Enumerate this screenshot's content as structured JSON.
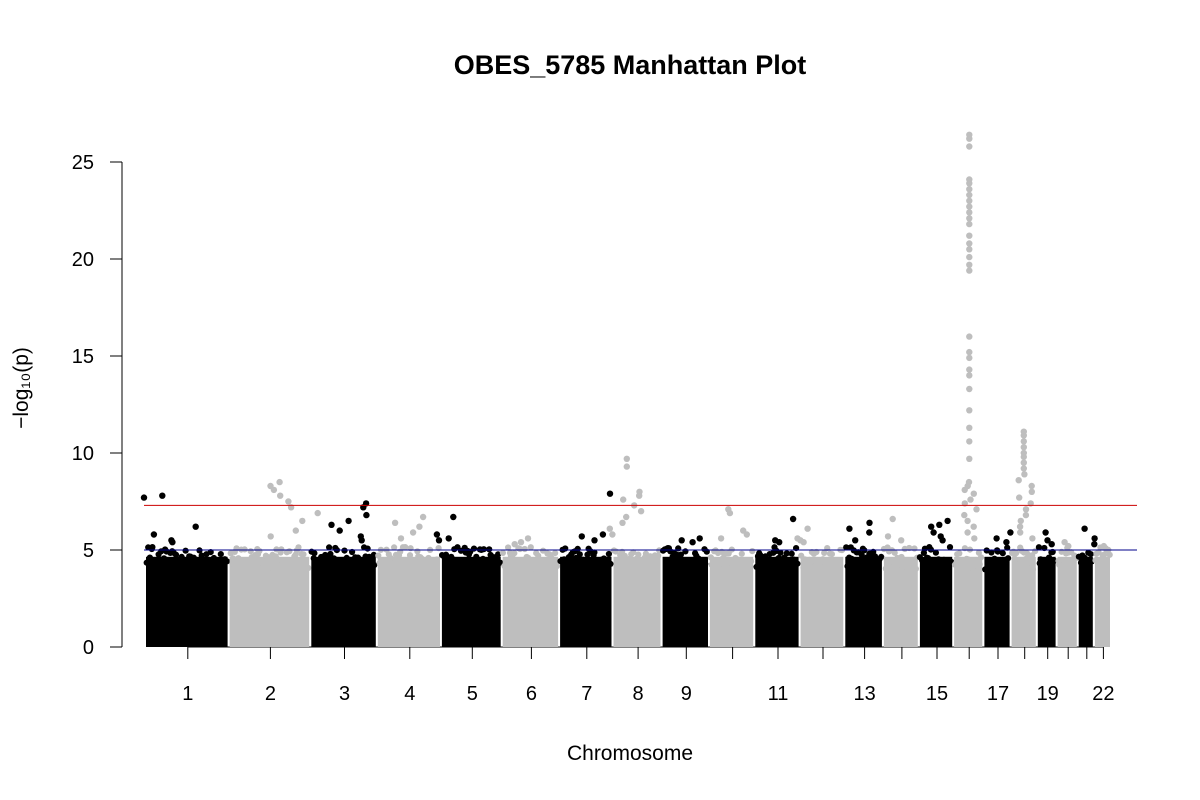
{
  "chart_data": {
    "type": "scatter",
    "title": "OBES_5785 Manhattan Plot",
    "xlabel": "Chromosome",
    "ylabel": "−log₁₀(p)",
    "ylim": [
      0,
      27
    ],
    "yticks": [
      0,
      5,
      10,
      15,
      20,
      25
    ],
    "chromosomes": [
      {
        "chr": "1",
        "peak": 7.8,
        "spikes": [
          7.8,
          7.7,
          6.2,
          5.8,
          5.5,
          5.4
        ]
      },
      {
        "chr": "2",
        "peak": 8.5,
        "spikes": [
          8.5,
          8.3,
          8.1,
          7.8,
          7.5,
          7.2,
          6.9,
          6.5,
          6.0,
          5.7
        ]
      },
      {
        "chr": "3",
        "peak": 7.4,
        "spikes": [
          7.4,
          7.2,
          6.8,
          6.5,
          6.3,
          6.0,
          5.7,
          5.5
        ]
      },
      {
        "chr": "4",
        "peak": 6.7,
        "spikes": [
          6.7,
          6.4,
          6.2,
          5.9,
          5.6
        ]
      },
      {
        "chr": "5",
        "peak": 6.7,
        "spikes": [
          6.7,
          5.8,
          5.6,
          5.5
        ]
      },
      {
        "chr": "6",
        "peak": 5.6,
        "spikes": [
          5.6,
          5.4,
          5.3
        ]
      },
      {
        "chr": "7",
        "peak": 7.9,
        "spikes": [
          7.9,
          5.8,
          5.7,
          5.5
        ]
      },
      {
        "chr": "8",
        "peak": 9.7,
        "spikes": [
          9.7,
          9.3,
          8.0,
          7.8,
          7.6,
          7.3,
          7.0,
          6.7,
          6.4,
          6.1,
          5.8
        ]
      },
      {
        "chr": "9",
        "peak": 5.6,
        "spikes": [
          5.6,
          5.5,
          5.4
        ]
      },
      {
        "chr": "10",
        "peak": 7.1,
        "spikes": [
          7.1,
          6.9,
          6.0,
          5.8,
          5.6
        ]
      },
      {
        "chr": "11",
        "peak": 6.6,
        "spikes": [
          6.6,
          5.5,
          5.4
        ]
      },
      {
        "chr": "12",
        "peak": 6.1,
        "spikes": [
          6.1,
          5.6,
          5.5,
          5.4
        ]
      },
      {
        "chr": "13",
        "peak": 6.4,
        "spikes": [
          6.4,
          6.1,
          5.9,
          5.5
        ]
      },
      {
        "chr": "14",
        "peak": 6.6,
        "spikes": [
          6.6,
          5.7,
          5.5
        ]
      },
      {
        "chr": "15",
        "peak": 6.5,
        "spikes": [
          6.5,
          6.3,
          6.2,
          5.9,
          5.7,
          5.5
        ]
      },
      {
        "chr": "16",
        "peak": 26.4,
        "spikes": [
          26.4,
          26.2,
          25.8,
          24.1,
          23.9,
          23.6,
          23.3,
          23.0,
          22.7,
          22.4,
          22.1,
          21.8,
          21.2,
          20.8,
          20.5,
          20.1,
          19.7,
          19.4,
          16.0,
          15.2,
          14.9,
          14.3,
          14.0,
          13.3,
          12.2,
          11.3,
          10.6,
          9.7,
          8.5,
          8.3,
          8.1,
          7.9,
          7.6,
          7.4,
          7.1,
          6.8,
          6.5,
          6.2,
          5.9,
          5.6
        ]
      },
      {
        "chr": "17",
        "peak": 5.9,
        "spikes": [
          5.9,
          5.6,
          5.4
        ]
      },
      {
        "chr": "18",
        "peak": 11.1,
        "spikes": [
          11.1,
          10.9,
          10.6,
          10.3,
          10.0,
          9.8,
          9.5,
          9.2,
          8.9,
          8.6,
          8.3,
          8.0,
          7.7,
          7.4,
          7.1,
          6.8,
          6.5,
          6.2,
          5.9,
          5.6
        ]
      },
      {
        "chr": "19",
        "peak": 5.9,
        "spikes": [
          5.9,
          5.5,
          5.3
        ]
      },
      {
        "chr": "20",
        "peak": 5.4,
        "spikes": [
          5.4,
          5.2
        ]
      },
      {
        "chr": "21",
        "peak": 6.1,
        "spikes": [
          6.1,
          5.6,
          5.3
        ]
      },
      {
        "chr": "22",
        "peak": 5.2,
        "spikes": [
          5.2
        ]
      }
    ],
    "x_tick_labels": [
      "1",
      "2",
      "3",
      "4",
      "5",
      "6",
      "7",
      "8",
      "9",
      "11",
      "13",
      "15",
      "17",
      "19",
      "22"
    ],
    "reference_lines": [
      {
        "y": 7.3,
        "color": "#cc0000"
      },
      {
        "y": 5.0,
        "color": "#00008b"
      }
    ],
    "colors": {
      "odd": "#000000",
      "even": "#bebebe"
    }
  }
}
